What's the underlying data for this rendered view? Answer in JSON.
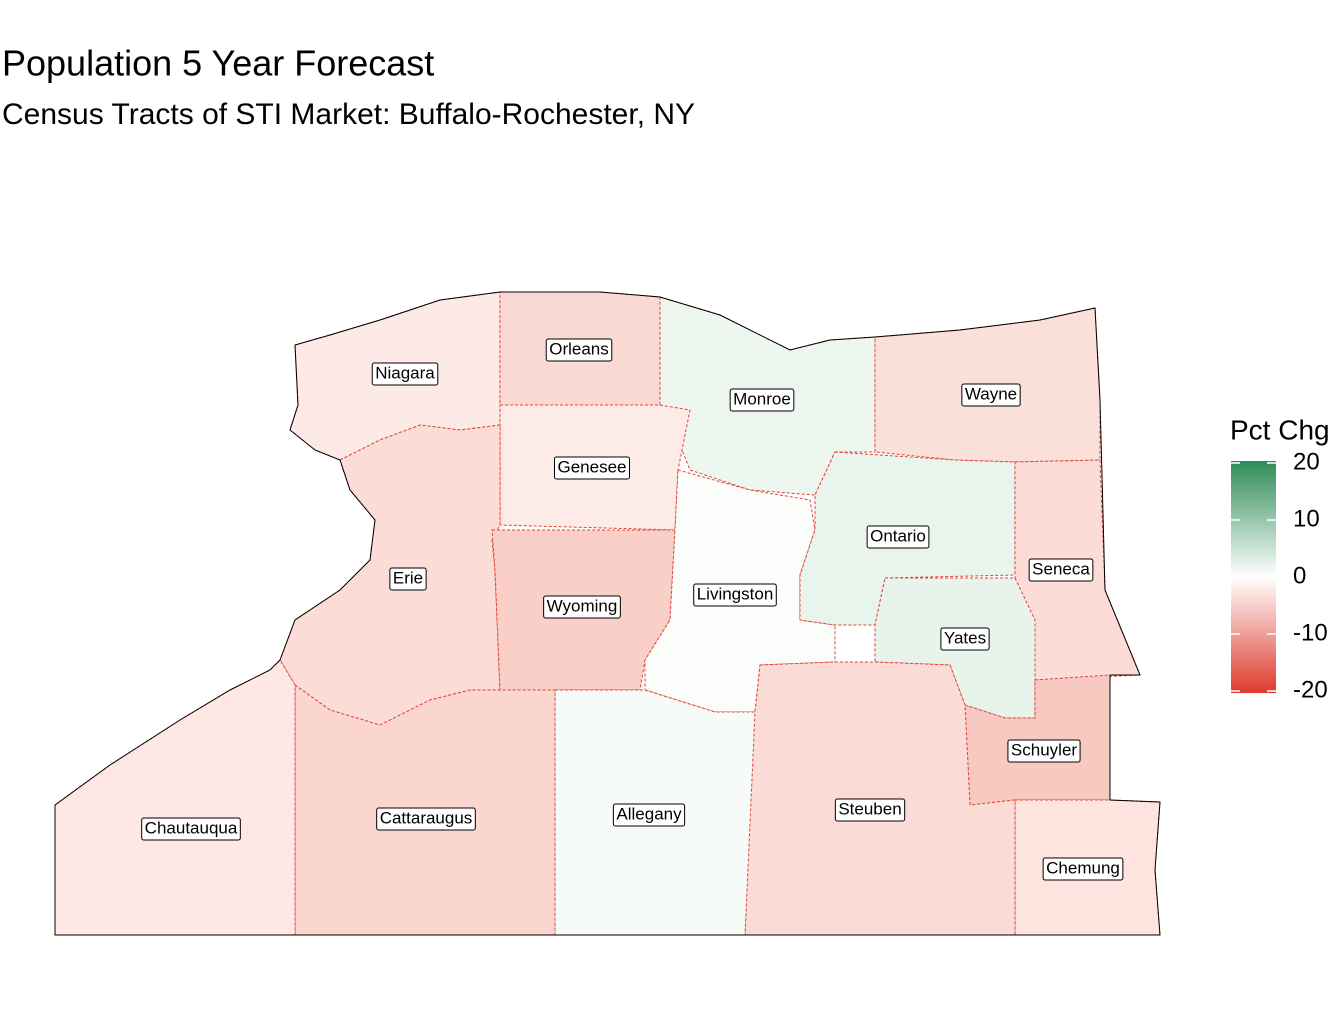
{
  "title": "Population 5 Year Forecast",
  "subtitle": "Census Tracts of STI Market: Buffalo-Rochester, NY",
  "counties": [
    "Niagara",
    "Orleans",
    "Monroe",
    "Wayne",
    "Genesee",
    "Erie",
    "Wyoming",
    "Livingston",
    "Ontario",
    "Seneca",
    "Yates",
    "Schuyler",
    "Chemung",
    "Steuben",
    "Allegany",
    "Cattaraugus",
    "Chautauqua"
  ],
  "legend": {
    "title": "Pct Chg",
    "range": [
      -20,
      20
    ],
    "ticks": [
      20,
      10,
      0,
      -10,
      -20
    ],
    "colors": {
      "low": "#dd3b2c",
      "mid": "#ffffff",
      "high": "#2e8b57"
    }
  }
}
